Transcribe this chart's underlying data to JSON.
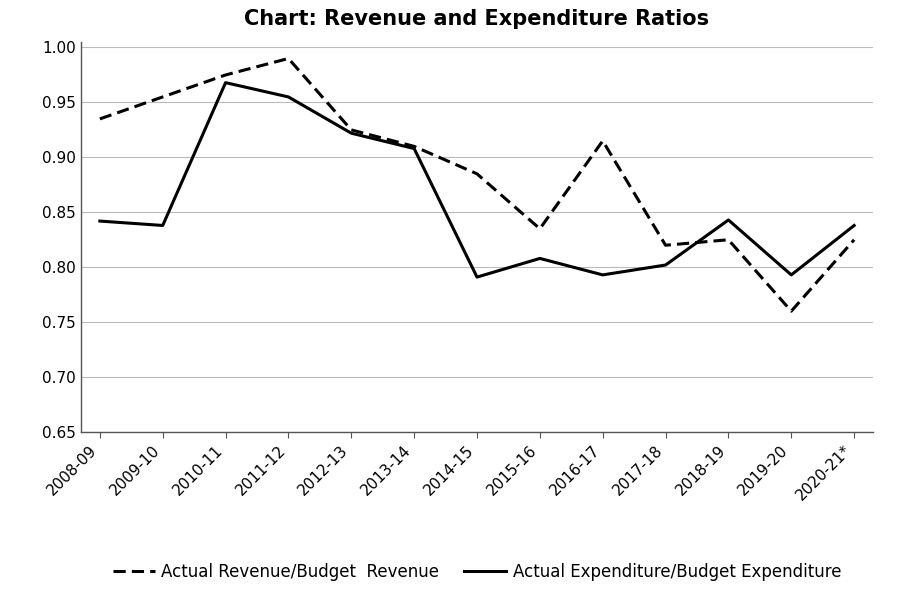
{
  "title": "Chart: Revenue and Expenditure Ratios",
  "categories": [
    "2008-09",
    "2009-10",
    "2010-11",
    "2011-12",
    "2012-13",
    "2013-14",
    "2014-15",
    "2015-16",
    "2016-17",
    "2017-18",
    "2018-19",
    "2019-20",
    "2020-21*"
  ],
  "revenue_ratio": [
    0.935,
    0.955,
    0.975,
    0.99,
    0.925,
    0.91,
    0.885,
    0.835,
    0.915,
    0.82,
    0.825,
    0.76,
    0.825
  ],
  "expenditure_ratio": [
    0.842,
    0.838,
    0.968,
    0.955,
    0.922,
    0.908,
    0.791,
    0.808,
    0.793,
    0.802,
    0.843,
    0.793,
    0.838
  ],
  "revenue_label": "Actual Revenue/Budget  Revenue",
  "expenditure_label": "Actual Expenditure/Budget Expenditure",
  "ylim": [
    0.65,
    1.005
  ],
  "yticks": [
    0.65,
    0.7,
    0.75,
    0.8,
    0.85,
    0.9,
    0.95,
    1.0
  ],
  "bg_color": "#ffffff",
  "line_color": "#000000",
  "title_fontsize": 15,
  "tick_fontsize": 11,
  "legend_fontsize": 12
}
